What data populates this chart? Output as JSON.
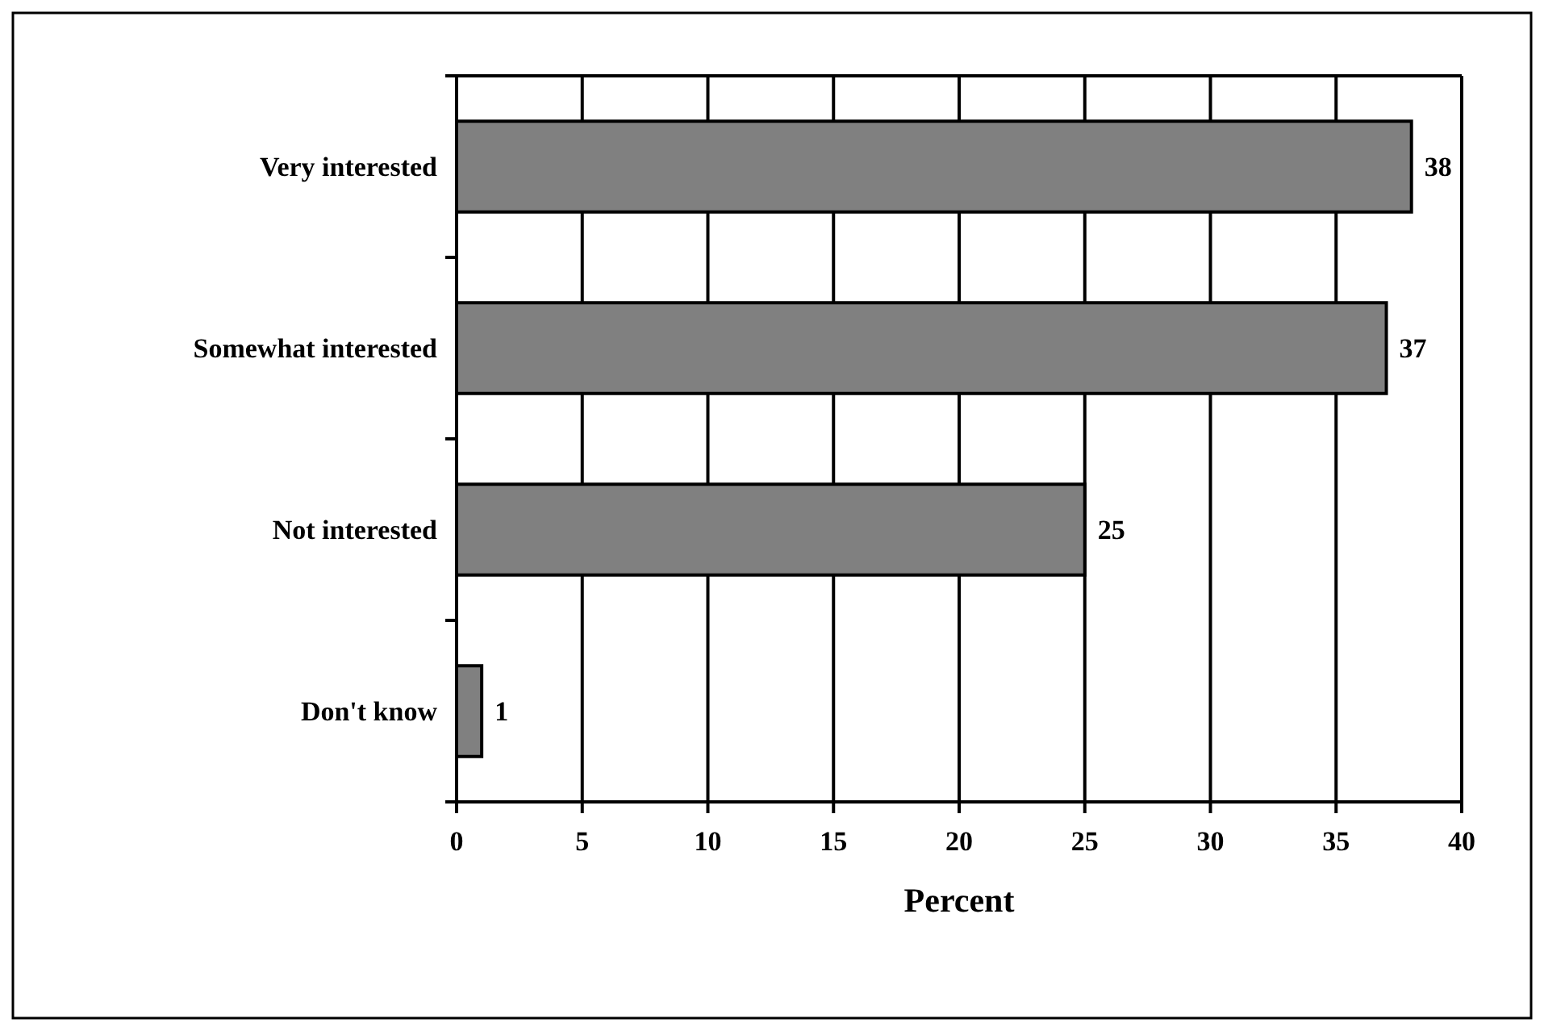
{
  "chart_data": {
    "type": "bar",
    "orientation": "horizontal",
    "xlabel": "Percent",
    "categories": [
      "Very interested",
      "Somewhat interested",
      "Not interested",
      "Don't know"
    ],
    "values": [
      38,
      37,
      25,
      1
    ],
    "color": "#808080",
    "xlim": [
      0,
      40
    ],
    "xticks": [
      0,
      5,
      10,
      15,
      20,
      25,
      30,
      35,
      40
    ],
    "grid": "x",
    "data_labels": true
  }
}
